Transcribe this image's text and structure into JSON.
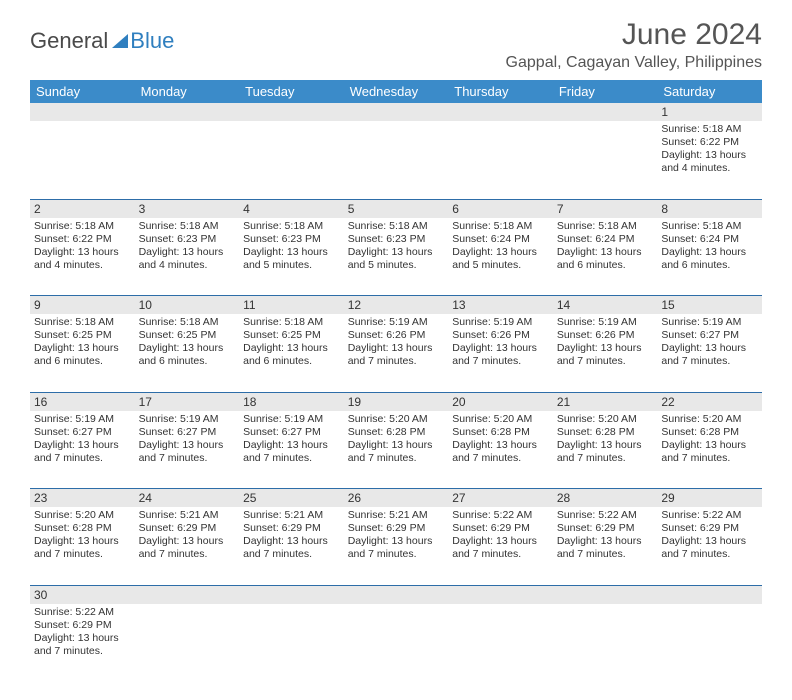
{
  "logo": {
    "text1": "General",
    "text2": "Blue"
  },
  "title": "June 2024",
  "location": "Gappal, Cagayan Valley, Philippines",
  "header_bg": "#3b8bc9",
  "row_divider": "#2d6da8",
  "daynum_bg": "#e8e8e8",
  "text_color": "#333333",
  "weekdays": [
    "Sunday",
    "Monday",
    "Tuesday",
    "Wednesday",
    "Thursday",
    "Friday",
    "Saturday"
  ],
  "weeks": [
    [
      null,
      null,
      null,
      null,
      null,
      null,
      {
        "n": "1",
        "sr": "Sunrise: 5:18 AM",
        "ss": "Sunset: 6:22 PM",
        "d1": "Daylight: 13 hours",
        "d2": "and 4 minutes."
      }
    ],
    [
      {
        "n": "2",
        "sr": "Sunrise: 5:18 AM",
        "ss": "Sunset: 6:22 PM",
        "d1": "Daylight: 13 hours",
        "d2": "and 4 minutes."
      },
      {
        "n": "3",
        "sr": "Sunrise: 5:18 AM",
        "ss": "Sunset: 6:23 PM",
        "d1": "Daylight: 13 hours",
        "d2": "and 4 minutes."
      },
      {
        "n": "4",
        "sr": "Sunrise: 5:18 AM",
        "ss": "Sunset: 6:23 PM",
        "d1": "Daylight: 13 hours",
        "d2": "and 5 minutes."
      },
      {
        "n": "5",
        "sr": "Sunrise: 5:18 AM",
        "ss": "Sunset: 6:23 PM",
        "d1": "Daylight: 13 hours",
        "d2": "and 5 minutes."
      },
      {
        "n": "6",
        "sr": "Sunrise: 5:18 AM",
        "ss": "Sunset: 6:24 PM",
        "d1": "Daylight: 13 hours",
        "d2": "and 5 minutes."
      },
      {
        "n": "7",
        "sr": "Sunrise: 5:18 AM",
        "ss": "Sunset: 6:24 PM",
        "d1": "Daylight: 13 hours",
        "d2": "and 6 minutes."
      },
      {
        "n": "8",
        "sr": "Sunrise: 5:18 AM",
        "ss": "Sunset: 6:24 PM",
        "d1": "Daylight: 13 hours",
        "d2": "and 6 minutes."
      }
    ],
    [
      {
        "n": "9",
        "sr": "Sunrise: 5:18 AM",
        "ss": "Sunset: 6:25 PM",
        "d1": "Daylight: 13 hours",
        "d2": "and 6 minutes."
      },
      {
        "n": "10",
        "sr": "Sunrise: 5:18 AM",
        "ss": "Sunset: 6:25 PM",
        "d1": "Daylight: 13 hours",
        "d2": "and 6 minutes."
      },
      {
        "n": "11",
        "sr": "Sunrise: 5:18 AM",
        "ss": "Sunset: 6:25 PM",
        "d1": "Daylight: 13 hours",
        "d2": "and 6 minutes."
      },
      {
        "n": "12",
        "sr": "Sunrise: 5:19 AM",
        "ss": "Sunset: 6:26 PM",
        "d1": "Daylight: 13 hours",
        "d2": "and 7 minutes."
      },
      {
        "n": "13",
        "sr": "Sunrise: 5:19 AM",
        "ss": "Sunset: 6:26 PM",
        "d1": "Daylight: 13 hours",
        "d2": "and 7 minutes."
      },
      {
        "n": "14",
        "sr": "Sunrise: 5:19 AM",
        "ss": "Sunset: 6:26 PM",
        "d1": "Daylight: 13 hours",
        "d2": "and 7 minutes."
      },
      {
        "n": "15",
        "sr": "Sunrise: 5:19 AM",
        "ss": "Sunset: 6:27 PM",
        "d1": "Daylight: 13 hours",
        "d2": "and 7 minutes."
      }
    ],
    [
      {
        "n": "16",
        "sr": "Sunrise: 5:19 AM",
        "ss": "Sunset: 6:27 PM",
        "d1": "Daylight: 13 hours",
        "d2": "and 7 minutes."
      },
      {
        "n": "17",
        "sr": "Sunrise: 5:19 AM",
        "ss": "Sunset: 6:27 PM",
        "d1": "Daylight: 13 hours",
        "d2": "and 7 minutes."
      },
      {
        "n": "18",
        "sr": "Sunrise: 5:19 AM",
        "ss": "Sunset: 6:27 PM",
        "d1": "Daylight: 13 hours",
        "d2": "and 7 minutes."
      },
      {
        "n": "19",
        "sr": "Sunrise: 5:20 AM",
        "ss": "Sunset: 6:28 PM",
        "d1": "Daylight: 13 hours",
        "d2": "and 7 minutes."
      },
      {
        "n": "20",
        "sr": "Sunrise: 5:20 AM",
        "ss": "Sunset: 6:28 PM",
        "d1": "Daylight: 13 hours",
        "d2": "and 7 minutes."
      },
      {
        "n": "21",
        "sr": "Sunrise: 5:20 AM",
        "ss": "Sunset: 6:28 PM",
        "d1": "Daylight: 13 hours",
        "d2": "and 7 minutes."
      },
      {
        "n": "22",
        "sr": "Sunrise: 5:20 AM",
        "ss": "Sunset: 6:28 PM",
        "d1": "Daylight: 13 hours",
        "d2": "and 7 minutes."
      }
    ],
    [
      {
        "n": "23",
        "sr": "Sunrise: 5:20 AM",
        "ss": "Sunset: 6:28 PM",
        "d1": "Daylight: 13 hours",
        "d2": "and 7 minutes."
      },
      {
        "n": "24",
        "sr": "Sunrise: 5:21 AM",
        "ss": "Sunset: 6:29 PM",
        "d1": "Daylight: 13 hours",
        "d2": "and 7 minutes."
      },
      {
        "n": "25",
        "sr": "Sunrise: 5:21 AM",
        "ss": "Sunset: 6:29 PM",
        "d1": "Daylight: 13 hours",
        "d2": "and 7 minutes."
      },
      {
        "n": "26",
        "sr": "Sunrise: 5:21 AM",
        "ss": "Sunset: 6:29 PM",
        "d1": "Daylight: 13 hours",
        "d2": "and 7 minutes."
      },
      {
        "n": "27",
        "sr": "Sunrise: 5:22 AM",
        "ss": "Sunset: 6:29 PM",
        "d1": "Daylight: 13 hours",
        "d2": "and 7 minutes."
      },
      {
        "n": "28",
        "sr": "Sunrise: 5:22 AM",
        "ss": "Sunset: 6:29 PM",
        "d1": "Daylight: 13 hours",
        "d2": "and 7 minutes."
      },
      {
        "n": "29",
        "sr": "Sunrise: 5:22 AM",
        "ss": "Sunset: 6:29 PM",
        "d1": "Daylight: 13 hours",
        "d2": "and 7 minutes."
      }
    ],
    [
      {
        "n": "30",
        "sr": "Sunrise: 5:22 AM",
        "ss": "Sunset: 6:29 PM",
        "d1": "Daylight: 13 hours",
        "d2": "and 7 minutes."
      },
      null,
      null,
      null,
      null,
      null,
      null
    ]
  ]
}
